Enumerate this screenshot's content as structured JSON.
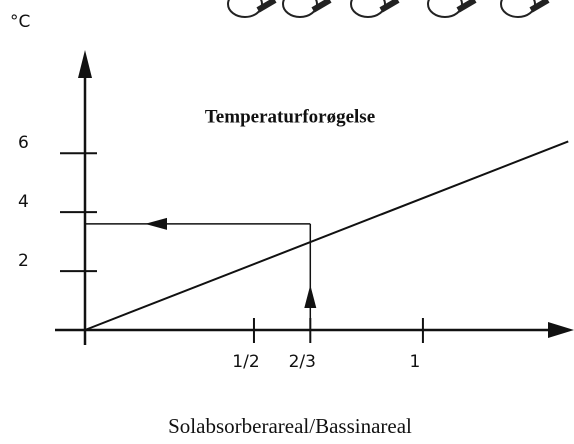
{
  "chart_data": {
    "type": "line",
    "title": "Temperaturforøgelse",
    "y_label": "°C",
    "x_label": "Solabsorberareal/Bassinareal",
    "x": [
      0,
      1.43
    ],
    "series": [
      {
        "color": "#111111",
        "values": [
          0,
          6.4
        ]
      }
    ],
    "reading": {
      "x": 0.6667,
      "y": 3.6
    },
    "xlim": [
      0,
      1.45
    ],
    "ylim": [
      0,
      9.3
    ],
    "xticks": [
      {
        "value": 0.5,
        "label": "1/2"
      },
      {
        "value": 0.6667,
        "label": "2/3"
      },
      {
        "value": 1,
        "label": "1"
      }
    ],
    "yticks": [
      2,
      4,
      6
    ]
  }
}
